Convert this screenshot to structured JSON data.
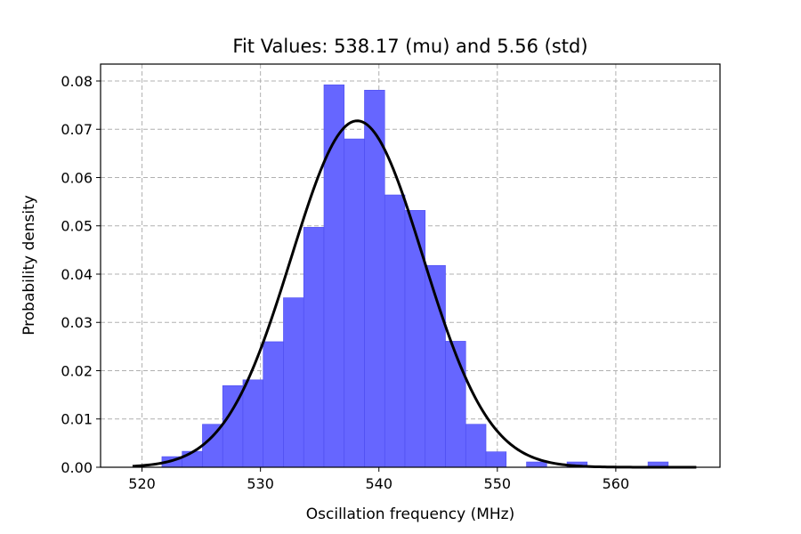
{
  "chart_data": {
    "type": "bar",
    "title": "Fit Values: 538.17 (mu) and 5.56 (std)",
    "xlabel": "Oscillation frequency (MHz)",
    "ylabel": "Probability density",
    "xlim": [
      516.5,
      568.8
    ],
    "ylim": [
      0,
      0.0835
    ],
    "xticks": [
      520,
      530,
      540,
      550,
      560
    ],
    "yticks": [
      0.0,
      0.01,
      0.02,
      0.03,
      0.04,
      0.05,
      0.06,
      0.07,
      0.08
    ],
    "xtick_labels": [
      "520",
      "530",
      "540",
      "550",
      "560"
    ],
    "ytick_labels": [
      "0.00",
      "0.01",
      "0.02",
      "0.03",
      "0.04",
      "0.05",
      "0.06",
      "0.07",
      "0.08"
    ],
    "grid": true,
    "histogram": {
      "bin_edges": [
        521.68,
        523.39,
        525.1,
        526.81,
        528.52,
        530.23,
        531.94,
        533.65,
        535.36,
        537.07,
        538.78,
        540.49,
        542.2,
        543.91,
        545.62,
        547.33,
        549.04,
        550.75,
        552.46,
        554.17,
        555.88,
        557.59,
        559.3,
        561.01,
        562.72,
        564.43
      ],
      "values": [
        0.0022,
        0.0033,
        0.0089,
        0.0169,
        0.0181,
        0.026,
        0.0351,
        0.0497,
        0.0792,
        0.068,
        0.0781,
        0.0564,
        0.0532,
        0.0418,
        0.0261,
        0.0089,
        0.0032,
        0.0,
        0.0011,
        0.0,
        0.0011,
        0.0,
        0.0,
        0.0,
        0.0011
      ],
      "color": "#6666ff",
      "edge_color": "#4c4cf0"
    },
    "fit": {
      "type": "normal_pdf",
      "mu": 538.17,
      "std": 5.56,
      "x_range": [
        519.2,
        566.8
      ],
      "color": "#000000"
    },
    "grid_color": "#b0b0b0"
  }
}
